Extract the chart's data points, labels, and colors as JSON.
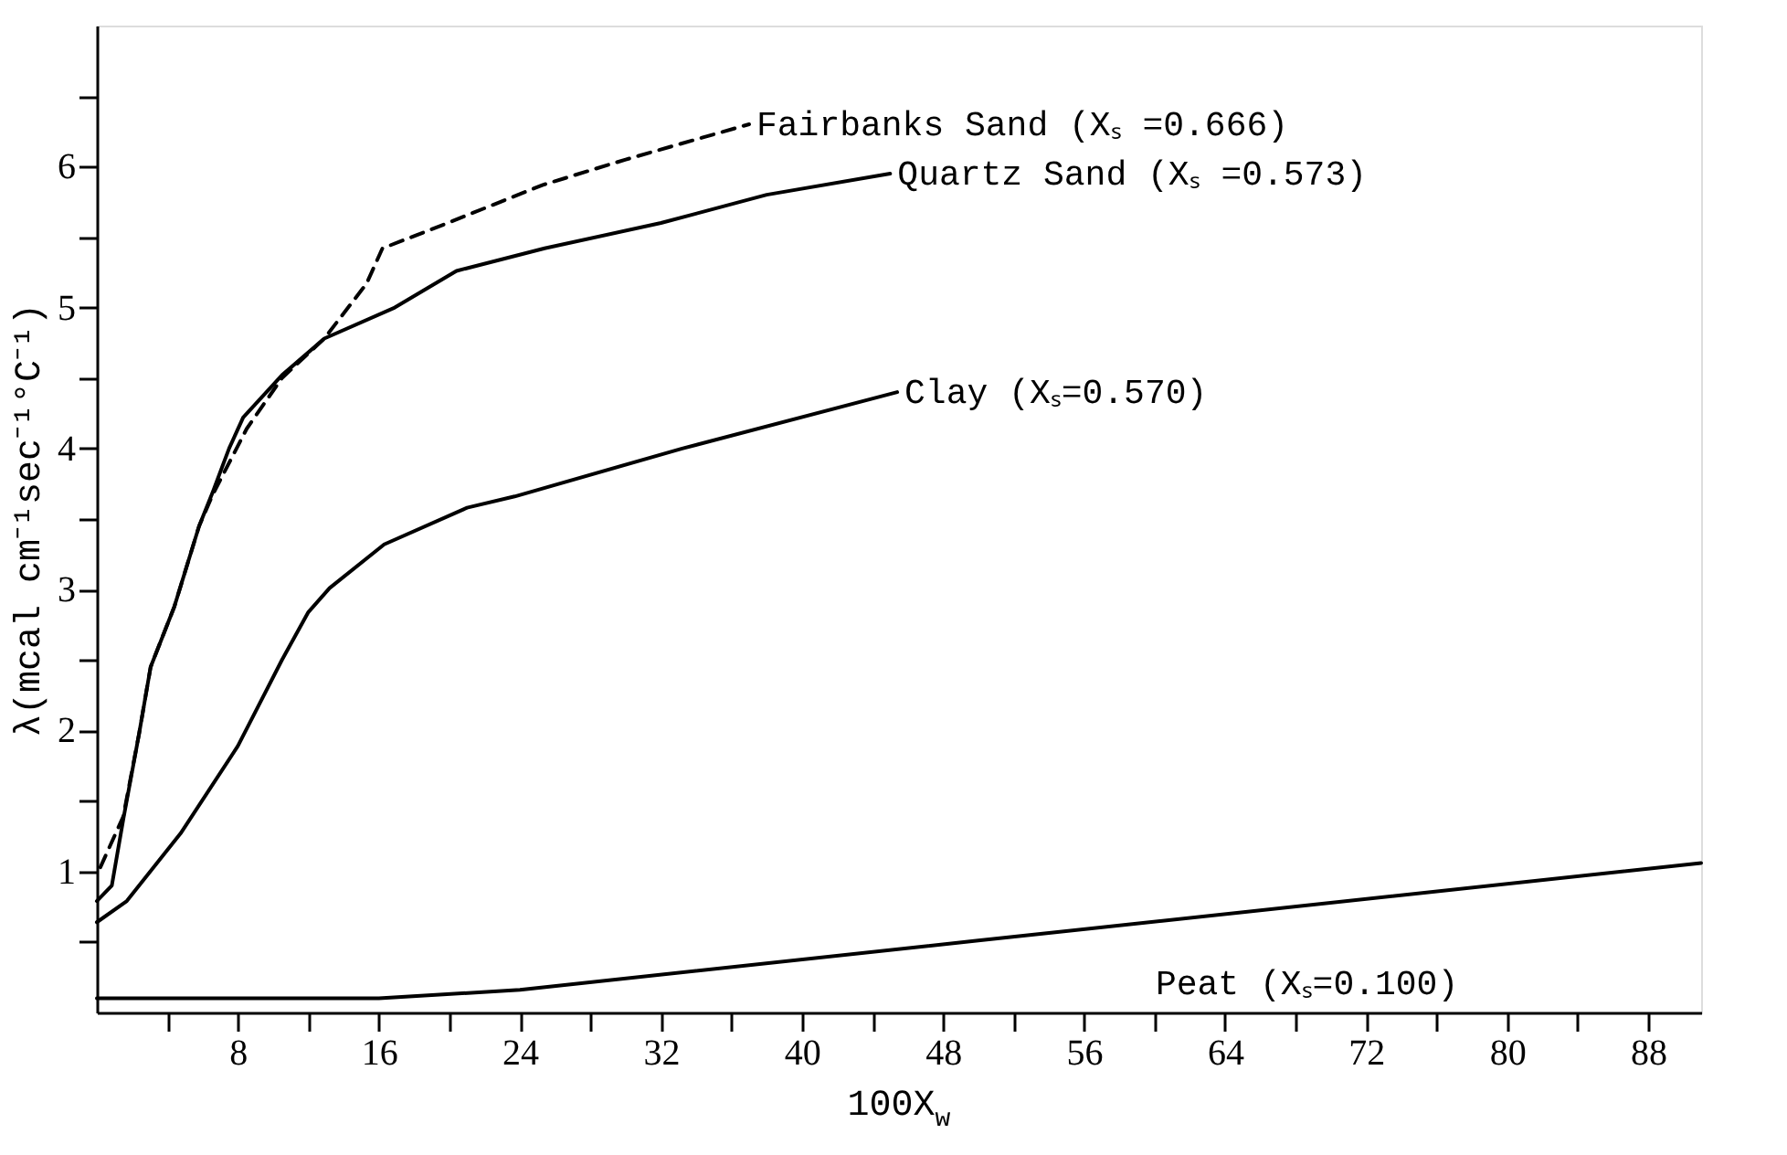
{
  "chart_data": {
    "type": "line",
    "xlabel": "100X$_{w}$",
    "ylabel": "λ(mcal cm⁻¹sec⁻¹°C⁻¹)",
    "xlim": [
      0,
      91
    ],
    "ylim": [
      0,
      7
    ],
    "xticks": [
      {
        "value": 4,
        "label": null
      },
      8,
      {
        "value": 12,
        "label": null
      },
      16,
      {
        "value": 20,
        "label": null
      },
      24,
      {
        "value": 28,
        "label": null
      },
      32,
      {
        "value": 36,
        "label": null
      },
      40,
      {
        "value": 44,
        "label": null
      },
      48,
      {
        "value": 52,
        "label": null
      },
      56,
      {
        "value": 60,
        "label": null
      },
      64,
      {
        "value": 68,
        "label": null
      },
      72,
      {
        "value": 76,
        "label": null
      },
      80,
      {
        "value": 84,
        "label": null
      },
      88
    ],
    "yticks": [
      {
        "value": 0.5,
        "label": null
      },
      1,
      {
        "value": 1.5,
        "label": null
      },
      2,
      {
        "value": 2.5,
        "label": null
      },
      3,
      {
        "value": 3.5,
        "label": null
      },
      4,
      {
        "value": 4.5,
        "label": null
      },
      5,
      {
        "value": 5.5,
        "label": null
      },
      6,
      {
        "value": 6.5,
        "label": null
      }
    ],
    "grid": false,
    "marker": "none",
    "series": [
      {
        "color": "#000000",
        "line_style": "dashed",
        "x": [
          0.2,
          1.5,
          2.4,
          3.05,
          4.4,
          5.8,
          6.6,
          8.5,
          10.5,
          12.9,
          15.3,
          16.2,
          19.5,
          25.3,
          30,
          37
        ],
        "values": [
          1.03,
          1.39,
          1.98,
          2.45,
          2.88,
          3.45,
          3.68,
          4.14,
          4.5,
          4.78,
          5.17,
          5.42,
          5.58,
          5.87,
          6.05,
          6.3
        ]
      },
      {
        "color": "#000000",
        "line_style": "solid",
        "x": [
          0,
          0.85,
          1.5,
          2.4,
          3.05,
          4.4,
          5.8,
          6.6,
          7.5,
          8.3,
          10.5,
          12.9,
          16.9,
          20.4,
          25.4,
          32,
          38,
          45
        ],
        "values": [
          0.79,
          0.9,
          1.37,
          1.98,
          2.45,
          2.88,
          3.45,
          3.7,
          4.0,
          4.22,
          4.52,
          4.78,
          5.0,
          5.26,
          5.42,
          5.6,
          5.8,
          5.95
        ]
      },
      {
        "color": "#000000",
        "line_style": "solid",
        "x": [
          0,
          1.7,
          4.75,
          8,
          10.5,
          12,
          13.2,
          16.3,
          21,
          23.7,
          33.2,
          45.4
        ],
        "values": [
          0.64,
          0.79,
          1.27,
          1.89,
          2.5,
          2.84,
          3.01,
          3.32,
          3.58,
          3.66,
          4.0,
          4.4
        ]
      },
      {
        "color": "#000000",
        "line_style": "solid",
        "x": [
          0,
          16,
          24,
          50,
          91
        ],
        "values": [
          0.1,
          0.1,
          0.16,
          0.51,
          1.06
        ]
      }
    ],
    "annotations": [
      {
        "text": "Fairbanks Sand (Xₛ =0.666)",
        "x": 37,
        "y": 6.3
      },
      {
        "text": "Quartz Sand (Xₛ =0.573)",
        "x": 45,
        "y": 5.95
      },
      {
        "text": "Clay (Xₛ=0.570)",
        "x": 45.4,
        "y": 4.4
      },
      "Peat (Xₛ=0.100)"
    ]
  }
}
